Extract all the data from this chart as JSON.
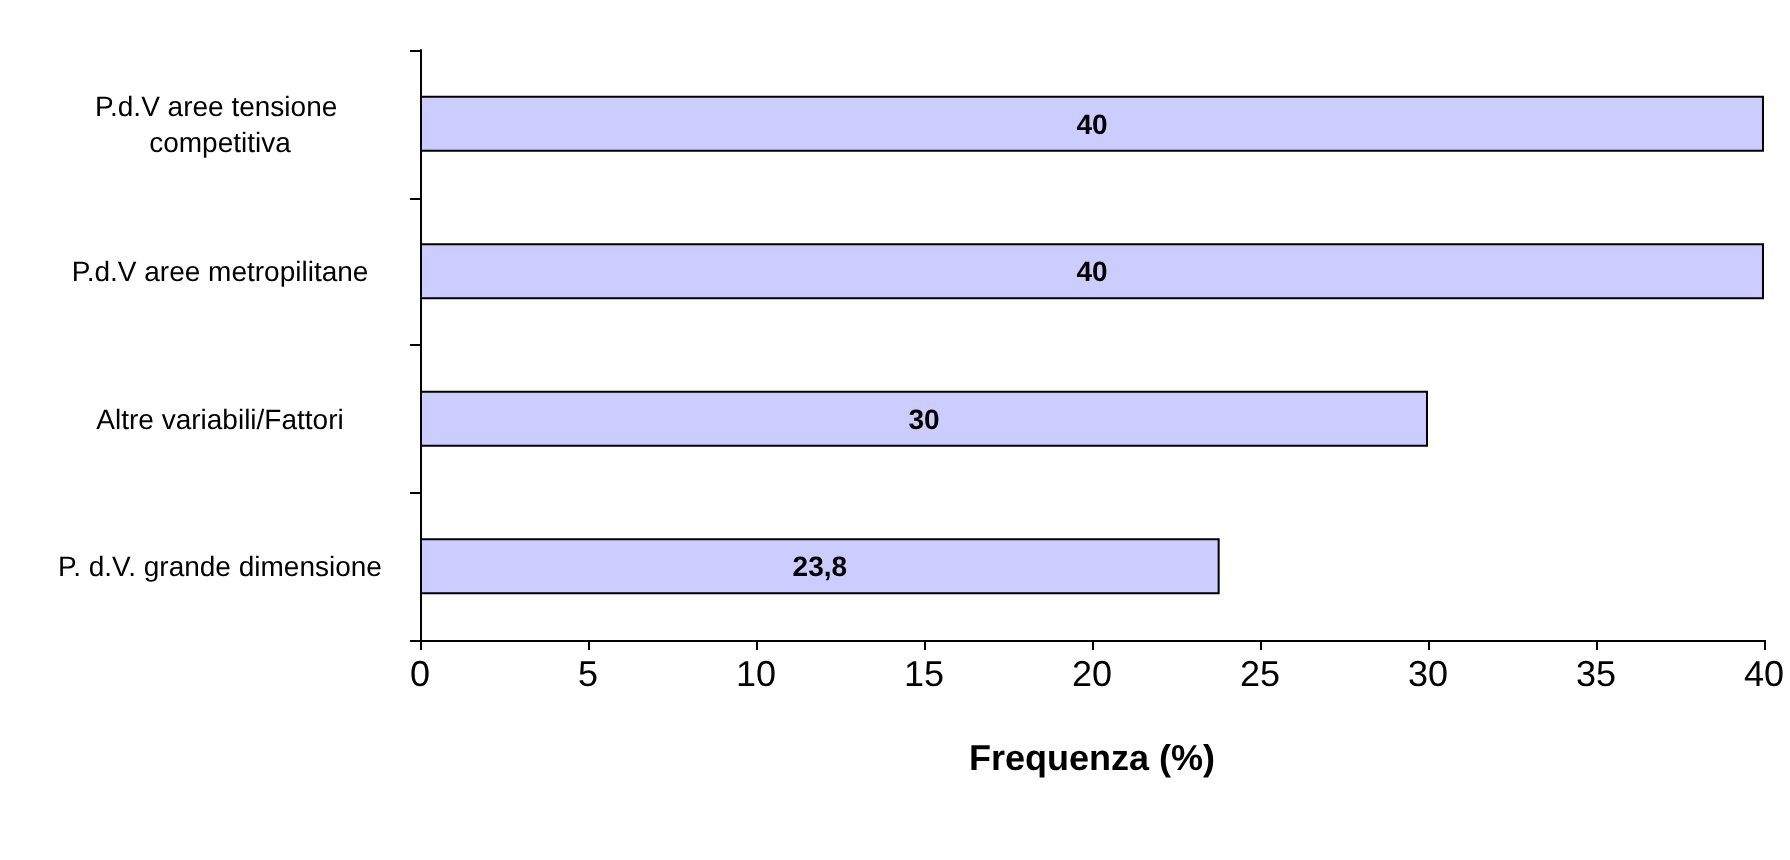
{
  "chart_data": {
    "type": "bar",
    "orientation": "horizontal",
    "categories": [
      "P.d.V aree tensione competitiva",
      "P.d.V aree metropilitane",
      "Altre variabili/Fattori",
      "P. d.V. grande dimensione"
    ],
    "values": [
      40,
      40,
      30,
      23.8
    ],
    "value_labels": [
      "40",
      "40",
      "30",
      "23,8"
    ],
    "color": "#ccccff",
    "xlabel": "Frequenza (%)",
    "xlim": [
      0,
      40
    ],
    "xticks": [
      0,
      5,
      10,
      15,
      20,
      25,
      30,
      35,
      40
    ],
    "grid": false
  }
}
